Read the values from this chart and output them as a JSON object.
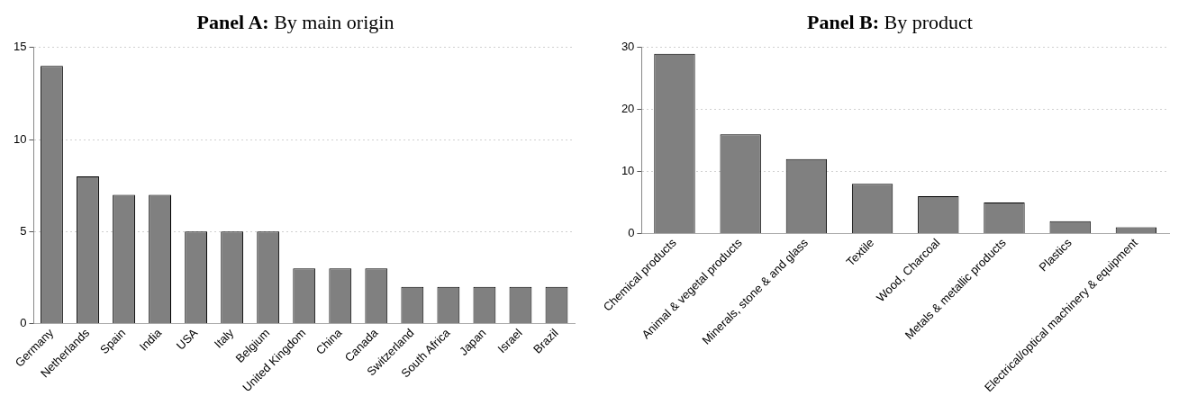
{
  "chart_data": [
    {
      "type": "bar",
      "title": "Panel A: By main origin",
      "categories": [
        "Germany",
        "Netherlands",
        "Spain",
        "India",
        "USA",
        "Italy",
        "Belgium",
        "United Kingdom",
        "China",
        "Canada",
        "Switzerland",
        "South Africa",
        "Japan",
        "Israel",
        "Brazil"
      ],
      "values": [
        14,
        8,
        7,
        7,
        5,
        5,
        5,
        3,
        3,
        3,
        2,
        2,
        2,
        2,
        2
      ],
      "color": "#808080",
      "ylim": [
        0,
        15
      ],
      "yticks": [
        0,
        5,
        10,
        15
      ],
      "grid": "y",
      "legend": false
    },
    {
      "type": "bar",
      "title": "Panel B: By product",
      "categories": [
        "Chemical products",
        "Animal & vegetal products",
        "Minerals, stone & and glass",
        "Textile",
        "Wood, Charcoal",
        "Metals & metallic products",
        "Plastics",
        "Electrical/optical machinery & equipment"
      ],
      "values": [
        29,
        16,
        12,
        8,
        6,
        5,
        2,
        1
      ],
      "color": "#808080",
      "ylim": [
        0,
        30
      ],
      "yticks": [
        0,
        10,
        20,
        30
      ],
      "grid": "y",
      "legend": false
    }
  ]
}
